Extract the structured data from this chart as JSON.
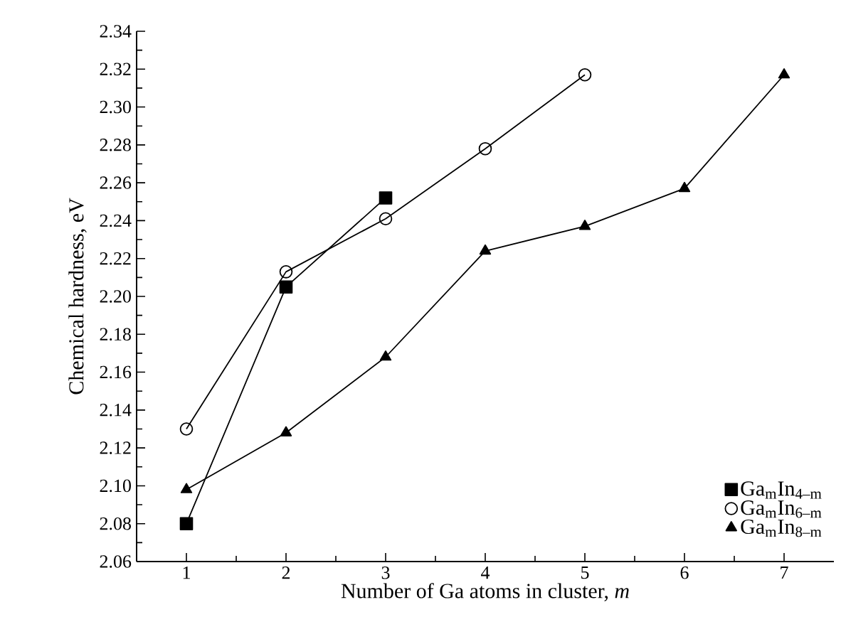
{
  "chart_data": {
    "type": "line",
    "xlabel": "Number of Ga atoms in cluster, *m*",
    "ylabel": "Chemical hardness, eV",
    "x": [
      1,
      2,
      3,
      4,
      5,
      6,
      7
    ],
    "series": [
      {
        "name": "Ga$_{m}$In$_{4–m}$",
        "color": "#000000",
        "marker": "square",
        "values": [
          2.08,
          2.205,
          2.252,
          null,
          null,
          null,
          null
        ]
      },
      {
        "name": "Ga$_{m}$In$_{6–m}$",
        "color": "#000000",
        "marker": "circle",
        "values": [
          2.13,
          2.213,
          2.241,
          2.278,
          2.317,
          null,
          null
        ]
      },
      {
        "name": "Ga$_{m}$In$_{8–m}$",
        "color": "#000000",
        "marker": "triangle",
        "values": [
          2.098,
          2.128,
          2.168,
          2.224,
          2.237,
          2.257,
          2.317
        ]
      }
    ],
    "xlim": [
      0.5,
      7.5
    ],
    "ylim": [
      2.06,
      2.34
    ],
    "xticks": [
      1,
      2,
      3,
      4,
      5,
      6,
      7
    ],
    "yticks": [
      2.06,
      2.08,
      {
        "value": 2.1,
        "label": "2.10"
      },
      2.12,
      2.14,
      2.16,
      2.18,
      {
        "value": 2.2,
        "label": "2.20"
      },
      2.22,
      2.24,
      2.26,
      2.28,
      {
        "value": 2.3,
        "label": "2.30"
      },
      2.32,
      2.34
    ],
    "grid": false,
    "legend": "bottom right",
    "line_style": "solid"
  }
}
